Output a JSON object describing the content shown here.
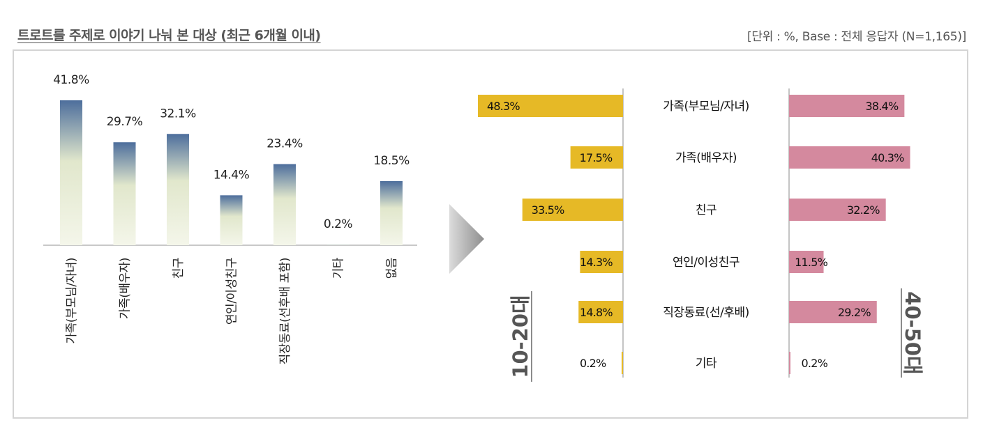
{
  "title": "트로트를 주제로 이야기 나눠 본 대상 (최근 6개월 이내)",
  "unit_note": "[단위 : %, Base : 전체 응답자 (N=1,165)]",
  "colors": {
    "bar_top": "#4d6e9c",
    "bar_mid": "#e1e7cc",
    "bar_bottom": "#f4f6ea",
    "young": "#e6b926",
    "old": "#d4899e",
    "arrow": "#a8a8a8"
  },
  "chart_data": [
    {
      "type": "bar",
      "categories": [
        "가족(부모님/자녀)",
        "가족(배우자)",
        "친구",
        "연인/이성친구",
        "직장동료(선후배 포함)",
        "기타",
        "없음"
      ],
      "values": [
        41.8,
        29.7,
        32.1,
        14.4,
        23.4,
        0.2,
        18.5
      ],
      "value_labels": [
        "41.8%",
        "29.7%",
        "32.1%",
        "14.4%",
        "23.4%",
        "0.2%",
        "18.5%"
      ],
      "ylim": [
        0,
        45
      ]
    },
    {
      "type": "bar",
      "orientation": "horizontal",
      "categories": [
        "가족(부모님/자녀)",
        "가족(배우자)",
        "친구",
        "연인/이성친구",
        "직장동료(선/후배)",
        "기타"
      ],
      "series": [
        {
          "name": "10-20대",
          "values": [
            48.3,
            17.5,
            33.5,
            14.3,
            14.8,
            0.2
          ],
          "labels": [
            "48.3%",
            "17.5%",
            "33.5%",
            "14.3%",
            "14.8%",
            "0.2%"
          ]
        },
        {
          "name": "40-50대",
          "values": [
            38.4,
            40.3,
            32.2,
            11.5,
            29.2,
            0.2
          ],
          "labels": [
            "38.4%",
            "40.3%",
            "32.2%",
            "11.5%",
            "29.2%",
            "0.2%"
          ]
        }
      ],
      "xlim": [
        0,
        50
      ]
    }
  ]
}
